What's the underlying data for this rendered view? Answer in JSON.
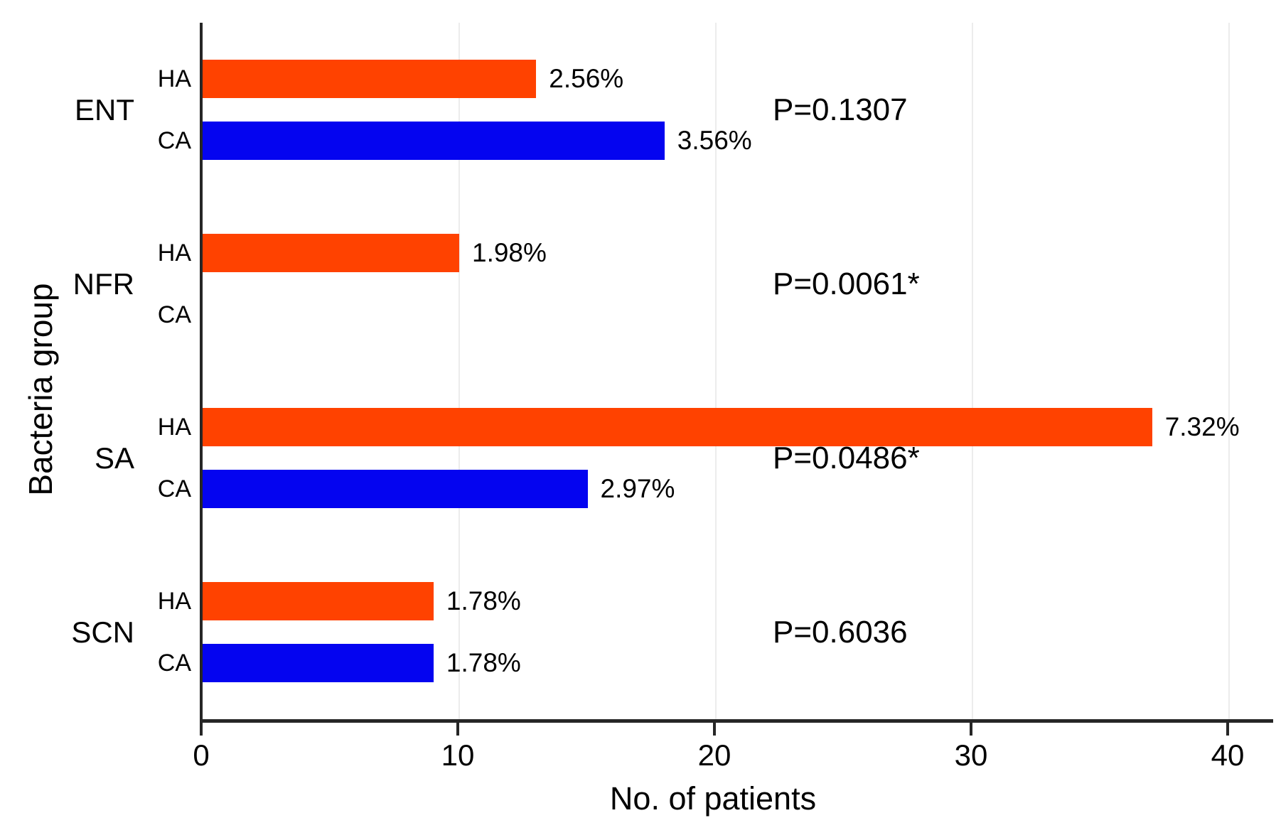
{
  "chart_data": {
    "type": "bar",
    "orientation": "horizontal",
    "title": "",
    "xlabel": "No. of patients",
    "ylabel": "Bacteria group",
    "xlim": [
      0,
      40
    ],
    "xticks": [
      0,
      10,
      20,
      30,
      40
    ],
    "xtick_labels": [
      "0",
      "10",
      "20",
      "30",
      "40"
    ],
    "grid": "vertical light gridlines at each x tick",
    "gridline_color": "#ECECEC",
    "axis_color": "#262626",
    "legend_position": "none (rows labeled HA/CA beside axis)",
    "categories": [
      "ENT",
      "NFR",
      "SA",
      "SCN"
    ],
    "series": [
      {
        "name": "HA",
        "color": "#FF4200",
        "values": [
          13,
          10,
          37,
          9
        ],
        "bar_labels": [
          "2.56%",
          "1.98%",
          "7.32%",
          "1.78%"
        ]
      },
      {
        "name": "CA",
        "color": "#0404F0",
        "values": [
          18,
          0,
          15,
          9
        ],
        "bar_labels": [
          "3.56%",
          "",
          "2.97%",
          "1.78%"
        ]
      }
    ],
    "annotations": [
      {
        "group": "ENT",
        "text": "P=0.1307"
      },
      {
        "group": "NFR",
        "text": "P=0.0061*"
      },
      {
        "group": "SA",
        "text": "P=0.0486*"
      },
      {
        "group": "SCN",
        "text": "P=0.6036"
      }
    ]
  }
}
